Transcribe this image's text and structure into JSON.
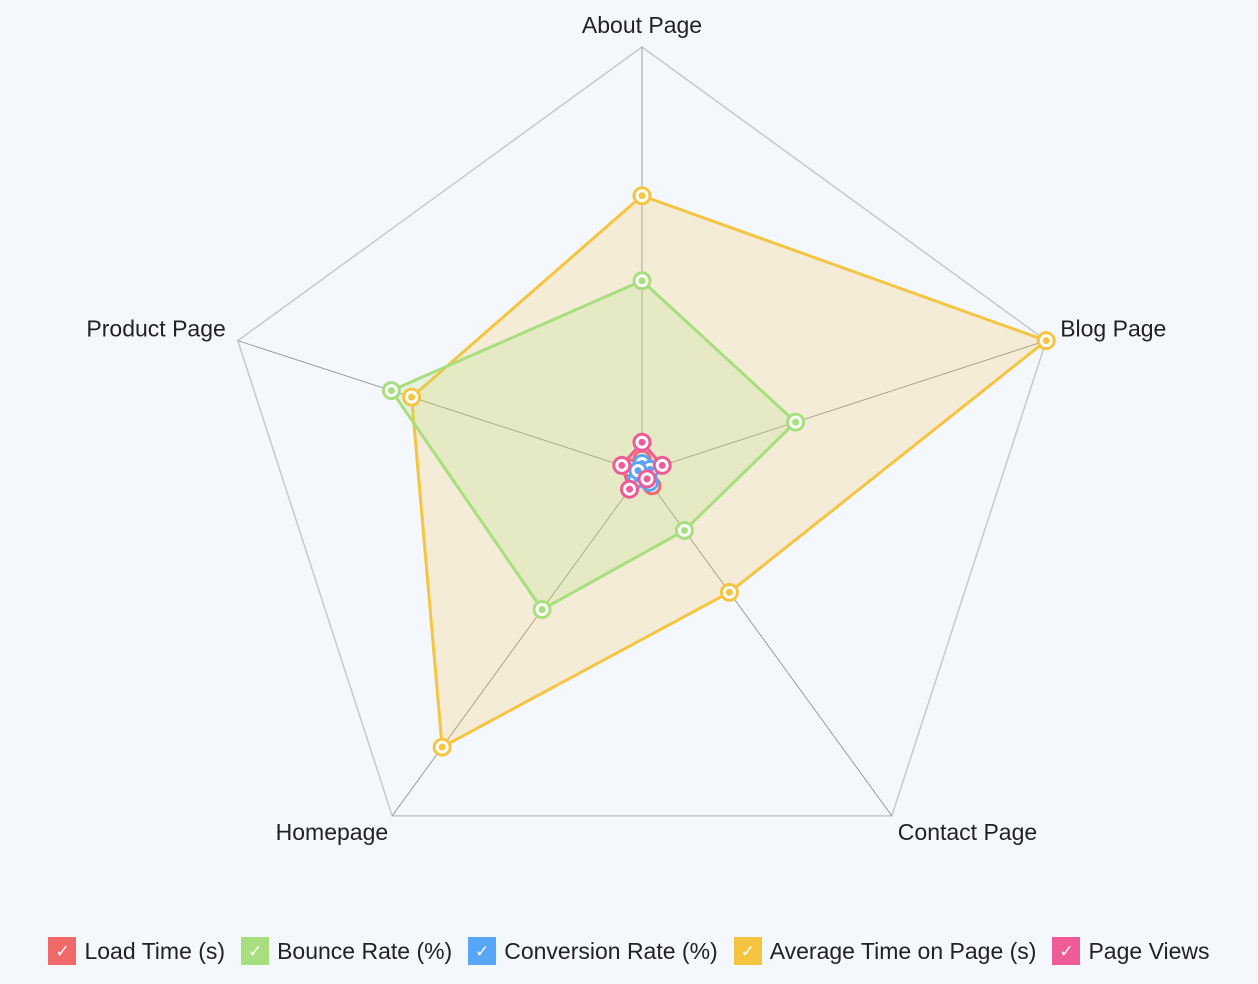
{
  "chart_data": {
    "type": "radar",
    "axes": [
      "About Page",
      "Blog Page",
      "Contact Page",
      "Homepage",
      "Product Page"
    ],
    "max": 100,
    "series": [
      {
        "name": "Load Time (s)",
        "values": [
          3,
          2,
          4,
          2,
          3
        ],
        "color": "#f06a6a"
      },
      {
        "name": "Bounce Rate (%)",
        "values": [
          45,
          38,
          17,
          40,
          62
        ],
        "color": "#a8df7e"
      },
      {
        "name": "Conversion Rate (%)",
        "values": [
          2,
          2,
          3,
          2,
          1
        ],
        "color": "#57a6f7"
      },
      {
        "name": "Average Time on Page (s)",
        "values": [
          65,
          100,
          35,
          80,
          57
        ],
        "color": "#f5c542"
      },
      {
        "name": "Page Views",
        "values": [
          7,
          5,
          2,
          5,
          5
        ],
        "color": "#ee5b97"
      }
    ],
    "grid": true,
    "legend_position": "bottom"
  },
  "legend": {
    "check_glyph": "✓"
  }
}
